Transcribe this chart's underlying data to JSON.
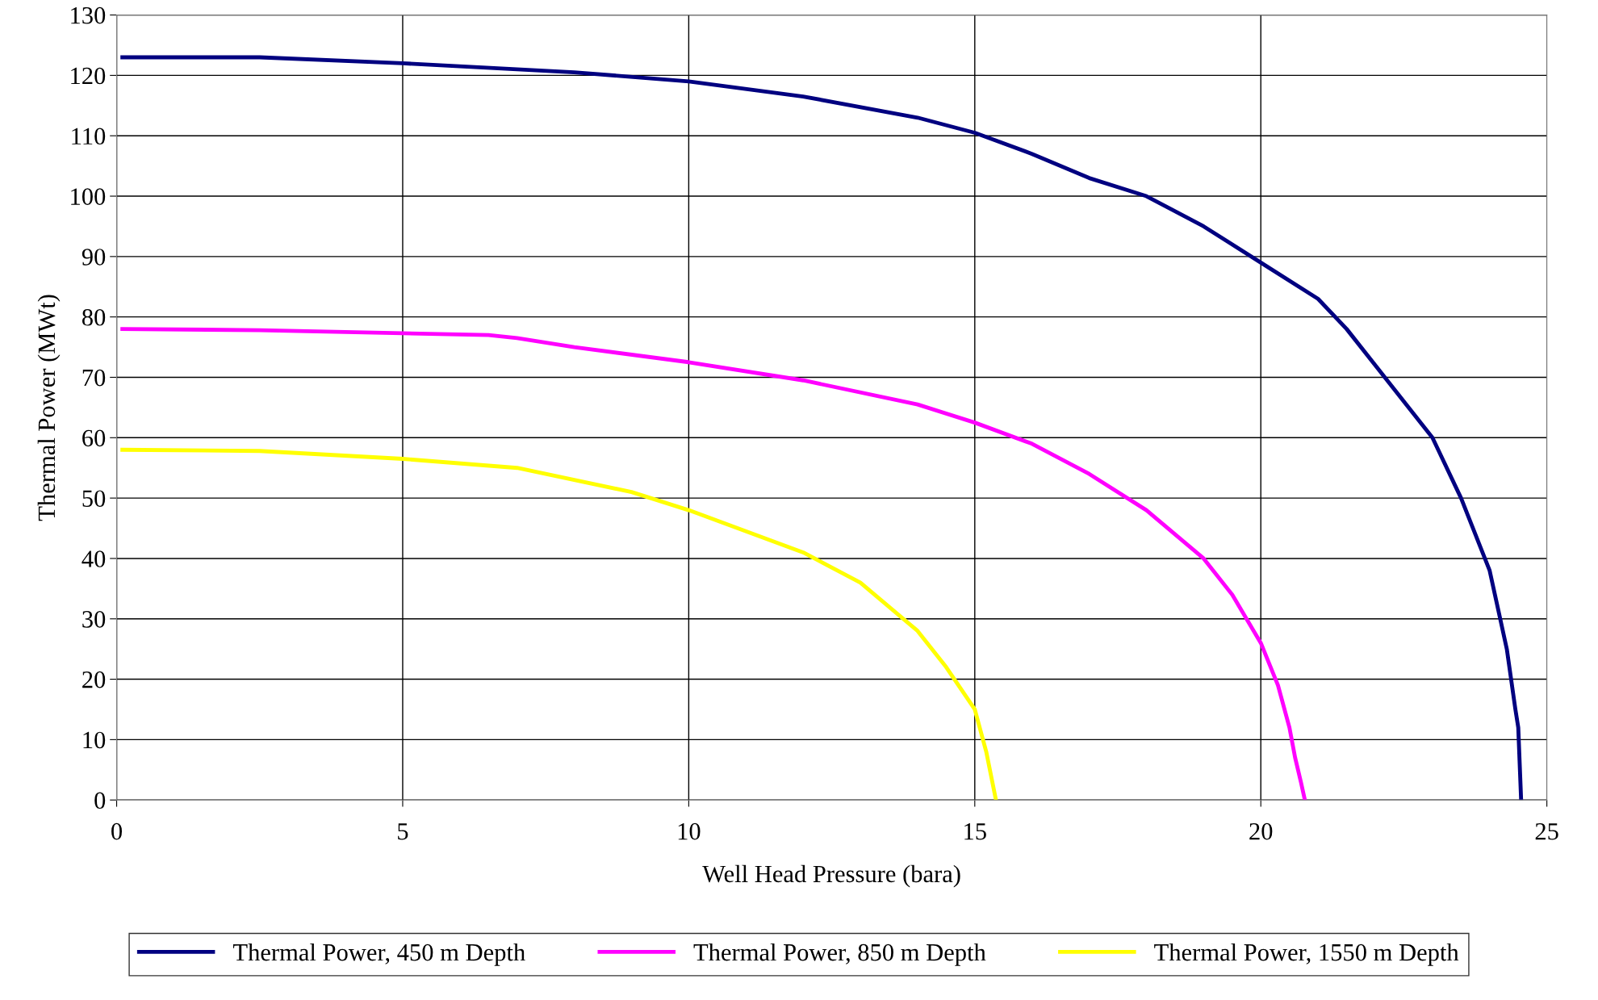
{
  "chart_data": {
    "type": "line",
    "xlabel": "Well Head Pressure (bara)",
    "ylabel": "Thermal Power (MWt)",
    "xlim": [
      0,
      25
    ],
    "xticks": [
      0,
      5,
      10,
      15,
      20,
      25
    ],
    "ylim": [
      0,
      130
    ],
    "yticks": [
      0,
      10,
      20,
      30,
      40,
      50,
      60,
      70,
      80,
      90,
      100,
      110,
      120,
      130
    ],
    "grid": true,
    "legend": "bottom",
    "marker": "none",
    "line_style": "solid",
    "series": [
      {
        "name": "Thermal Power, 450 m Depth",
        "color": "#000080",
        "x": [
          0.1,
          2.5,
          5,
          8,
          10,
          12,
          14,
          15,
          16,
          17,
          18,
          19,
          20,
          21,
          21.5,
          22,
          23,
          23.5,
          24,
          24.3,
          24.45,
          24.5,
          24.55
        ],
        "values": [
          123,
          123,
          122,
          120.5,
          119,
          116.5,
          113,
          110.5,
          107,
          103,
          100,
          95,
          89,
          83,
          78,
          72,
          60,
          50,
          38,
          25,
          15,
          12,
          0
        ]
      },
      {
        "name": "Thermal Power, 850 m Depth",
        "color": "#ff00ff",
        "x": [
          0.1,
          2.5,
          5,
          6.5,
          7,
          8,
          10,
          12,
          14,
          15,
          16,
          17,
          18,
          19,
          19.5,
          20,
          20.3,
          20.5,
          20.6,
          20.7,
          20.77
        ],
        "values": [
          78,
          77.8,
          77.3,
          77,
          76.5,
          75,
          72.5,
          69.5,
          65.5,
          62.5,
          59,
          54,
          48,
          40,
          34,
          26,
          19,
          12,
          7,
          3,
          0
        ]
      },
      {
        "name": "Thermal Power, 1550 m Depth",
        "color": "#ffff00",
        "x": [
          0.1,
          2.5,
          5,
          7,
          9,
          10,
          12,
          13,
          14,
          14.5,
          15,
          15.2,
          15.37
        ],
        "values": [
          58,
          57.8,
          56.5,
          55,
          51,
          48,
          41,
          36,
          28,
          22,
          15,
          8,
          0
        ]
      }
    ]
  }
}
